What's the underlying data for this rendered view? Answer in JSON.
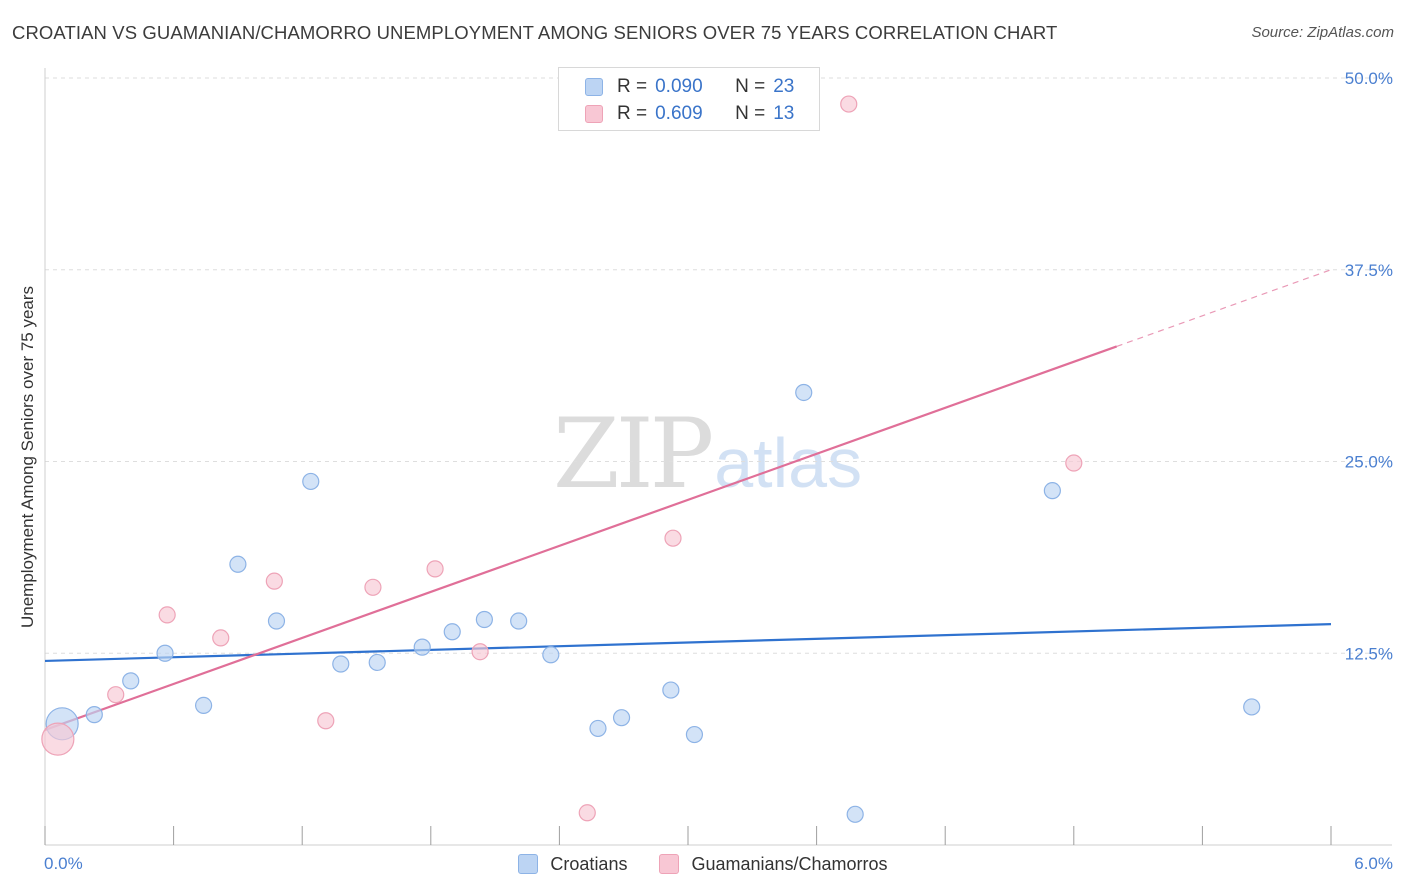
{
  "title": "CROATIAN VS GUAMANIAN/CHAMORRO UNEMPLOYMENT AMONG SENIORS OVER 75 YEARS CORRELATION CHART",
  "source": "Source: ZipAtlas.com",
  "watermark": {
    "zip": "ZIP",
    "atlas": "atlas"
  },
  "colors": {
    "blue_fill": "#bcd4f3",
    "blue_stroke": "#8db3e6",
    "blue_line": "#2f72cf",
    "pink_fill": "#f8c7d4",
    "pink_stroke": "#eea3b7",
    "pink_line": "#e06f98",
    "tick_text": "#4a7fd0",
    "grid": "#dedede"
  },
  "legend_top": {
    "rows": [
      {
        "r_label": "R =",
        "r_value": "0.090",
        "n_label": "N =",
        "n_value": "23"
      },
      {
        "r_label": "R =",
        "r_value": "0.609",
        "n_label": "N =",
        "n_value": "13"
      }
    ]
  },
  "legend_bottom": {
    "series1": "Croatians",
    "series2": "Guamanians/Chamorros"
  },
  "chart_data": {
    "type": "scatter",
    "title": "CROATIAN VS GUAMANIAN/CHAMORRO UNEMPLOYMENT AMONG SENIORS OVER 75 YEARS CORRELATION CHART",
    "xlabel": "",
    "ylabel": "Unemployment Among Seniors over 75 years",
    "xlim": [
      0,
      6.0
    ],
    "ylim": [
      0,
      50
    ],
    "x_tick_labels": [
      "0.0%",
      "6.0%"
    ],
    "y_ticks": [
      12.5,
      25.0,
      37.5,
      50.0
    ],
    "y_tick_labels": [
      "12.5%",
      "25.0%",
      "37.5%",
      "50.0%"
    ],
    "series": [
      {
        "name": "Croatians",
        "color": "blue",
        "R": 0.09,
        "N": 23,
        "points": [
          {
            "x": 0.08,
            "y": 7.9,
            "size": "large"
          },
          {
            "x": 0.23,
            "y": 8.5
          },
          {
            "x": 0.4,
            "y": 10.7
          },
          {
            "x": 0.56,
            "y": 12.5
          },
          {
            "x": 0.74,
            "y": 9.1
          },
          {
            "x": 0.9,
            "y": 18.3
          },
          {
            "x": 1.08,
            "y": 14.6
          },
          {
            "x": 1.24,
            "y": 23.7
          },
          {
            "x": 1.38,
            "y": 11.8
          },
          {
            "x": 1.55,
            "y": 11.9
          },
          {
            "x": 1.76,
            "y": 12.9
          },
          {
            "x": 1.9,
            "y": 13.9
          },
          {
            "x": 2.05,
            "y": 14.7
          },
          {
            "x": 2.21,
            "y": 14.6
          },
          {
            "x": 2.36,
            "y": 12.4
          },
          {
            "x": 2.58,
            "y": 7.6
          },
          {
            "x": 2.69,
            "y": 8.3
          },
          {
            "x": 2.92,
            "y": 10.1
          },
          {
            "x": 3.03,
            "y": 7.2
          },
          {
            "x": 3.54,
            "y": 29.5
          },
          {
            "x": 3.78,
            "y": 2.0
          },
          {
            "x": 4.7,
            "y": 23.1
          },
          {
            "x": 5.63,
            "y": 9.0
          }
        ],
        "trend": {
          "x0": 0.0,
          "y0": 12.0,
          "x1": 6.0,
          "y1": 14.4
        }
      },
      {
        "name": "Guamanians/Chamorros",
        "color": "pink",
        "R": 0.609,
        "N": 13,
        "points": [
          {
            "x": 0.06,
            "y": 6.9,
            "size": "large"
          },
          {
            "x": 0.33,
            "y": 9.8
          },
          {
            "x": 0.57,
            "y": 15.0
          },
          {
            "x": 0.82,
            "y": 13.5
          },
          {
            "x": 1.07,
            "y": 17.2
          },
          {
            "x": 1.31,
            "y": 8.1
          },
          {
            "x": 1.53,
            "y": 16.8
          },
          {
            "x": 1.82,
            "y": 18.0
          },
          {
            "x": 2.03,
            "y": 12.6
          },
          {
            "x": 2.53,
            "y": 2.1
          },
          {
            "x": 2.93,
            "y": 20.0
          },
          {
            "x": 3.75,
            "y": 48.3
          },
          {
            "x": 4.8,
            "y": 24.9
          }
        ],
        "trend": {
          "x0": 0.0,
          "y0": 7.5,
          "x1": 5.0,
          "y1": 32.5,
          "dashed_to_x": 6.0,
          "dashed_to_y": 37.5
        }
      }
    ]
  }
}
